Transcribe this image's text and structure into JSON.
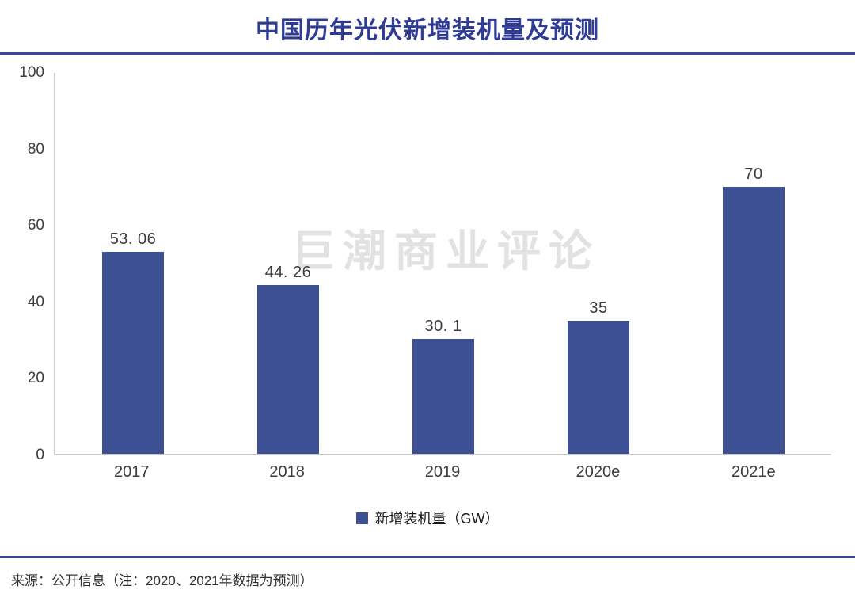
{
  "page": {
    "title": "中国历年光伏新增装机量及预测",
    "watermark": "巨潮商业评论",
    "source_note": "来源：公开信息（注：2020、2021年数据为预测）"
  },
  "colors": {
    "bar": "#3e5094",
    "title": "#2f3c96",
    "divider": "#3a47a0",
    "axis": "#c6c6c6",
    "text": "#3c3c3c",
    "watermark": "#e2e2e2"
  },
  "chart_data": {
    "type": "bar",
    "title": "中国历年光伏新增装机量及预测",
    "categories": [
      "2017",
      "2018",
      "2019",
      "2020e",
      "2021e"
    ],
    "values": [
      53.06,
      44.26,
      30.1,
      35,
      70
    ],
    "value_labels": [
      "53. 06",
      "44. 26",
      "30. 1",
      "35",
      "70"
    ],
    "xlabel": "",
    "ylabel": "",
    "ylim": [
      0,
      100
    ],
    "yticks": [
      0,
      20,
      40,
      60,
      80,
      100
    ],
    "grid": false,
    "legend": [
      {
        "label": "新增装机量（GW）",
        "color": "#3e5094"
      }
    ],
    "legend_position": "bottom-center",
    "source": "来源：公开信息（注：2020、2021年数据为预测）"
  }
}
